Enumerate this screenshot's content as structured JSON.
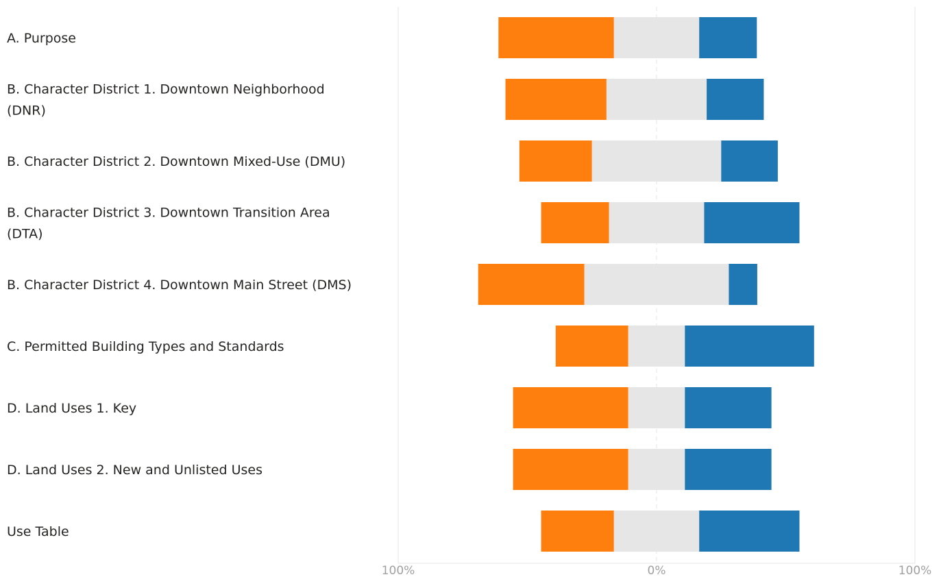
{
  "chart_data": {
    "type": "bar",
    "orientation": "horizontal",
    "stacked": "diverging",
    "categories": [
      "A. Purpose",
      "B. Character District 1. Downtown Neighborhood (DNR)",
      "B. Character District 2. Downtown Mixed-Use (DMU)",
      "B. Character District 3. Downtown Transition Area (DTA)",
      "B. Character District 4. Downtown Main Street (DMS)",
      "C. Permitted Building Types and Standards",
      "D. Land Uses 1. Key",
      "D. Land Uses 2. New and Unlisted Uses",
      "Use Table"
    ],
    "category_lines": [
      [
        "A. Purpose"
      ],
      [
        "B. Character District 1. Downtown Neighborhood",
        "(DNR)"
      ],
      [
        "B. Character District 2. Downtown Mixed-Use (DMU)"
      ],
      [
        "B. Character District 3. Downtown Transition Area",
        "(DTA)"
      ],
      [
        "B. Character District 4. Downtown Main Street (DMS)"
      ],
      [
        "C. Permitted Building Types and Standards"
      ],
      [
        "D. Land Uses 1. Key"
      ],
      [
        "D. Land Uses 2. New and Unlisted Uses"
      ],
      [
        "Use Table"
      ]
    ],
    "series": [
      {
        "color": "#ff7f0e",
        "values": [
          44.7,
          39.1,
          28.1,
          26.3,
          41.1,
          28.1,
          44.6,
          44.6,
          28.2
        ]
      },
      {
        "color": "#e6e6e6",
        "values": [
          33.0,
          38.8,
          50.0,
          36.8,
          55.9,
          21.9,
          21.9,
          21.9,
          33.0
        ]
      },
      {
        "color": "#1f77b4",
        "values": [
          22.3,
          22.1,
          21.9,
          36.9,
          11.0,
          50.0,
          33.5,
          33.5,
          38.8
        ]
      }
    ],
    "neutral_series_index": 1,
    "x_ticks": [
      "100%",
      "0%",
      "100%"
    ],
    "xlim": [
      -100,
      100
    ],
    "legend": "none",
    "grid": true
  }
}
